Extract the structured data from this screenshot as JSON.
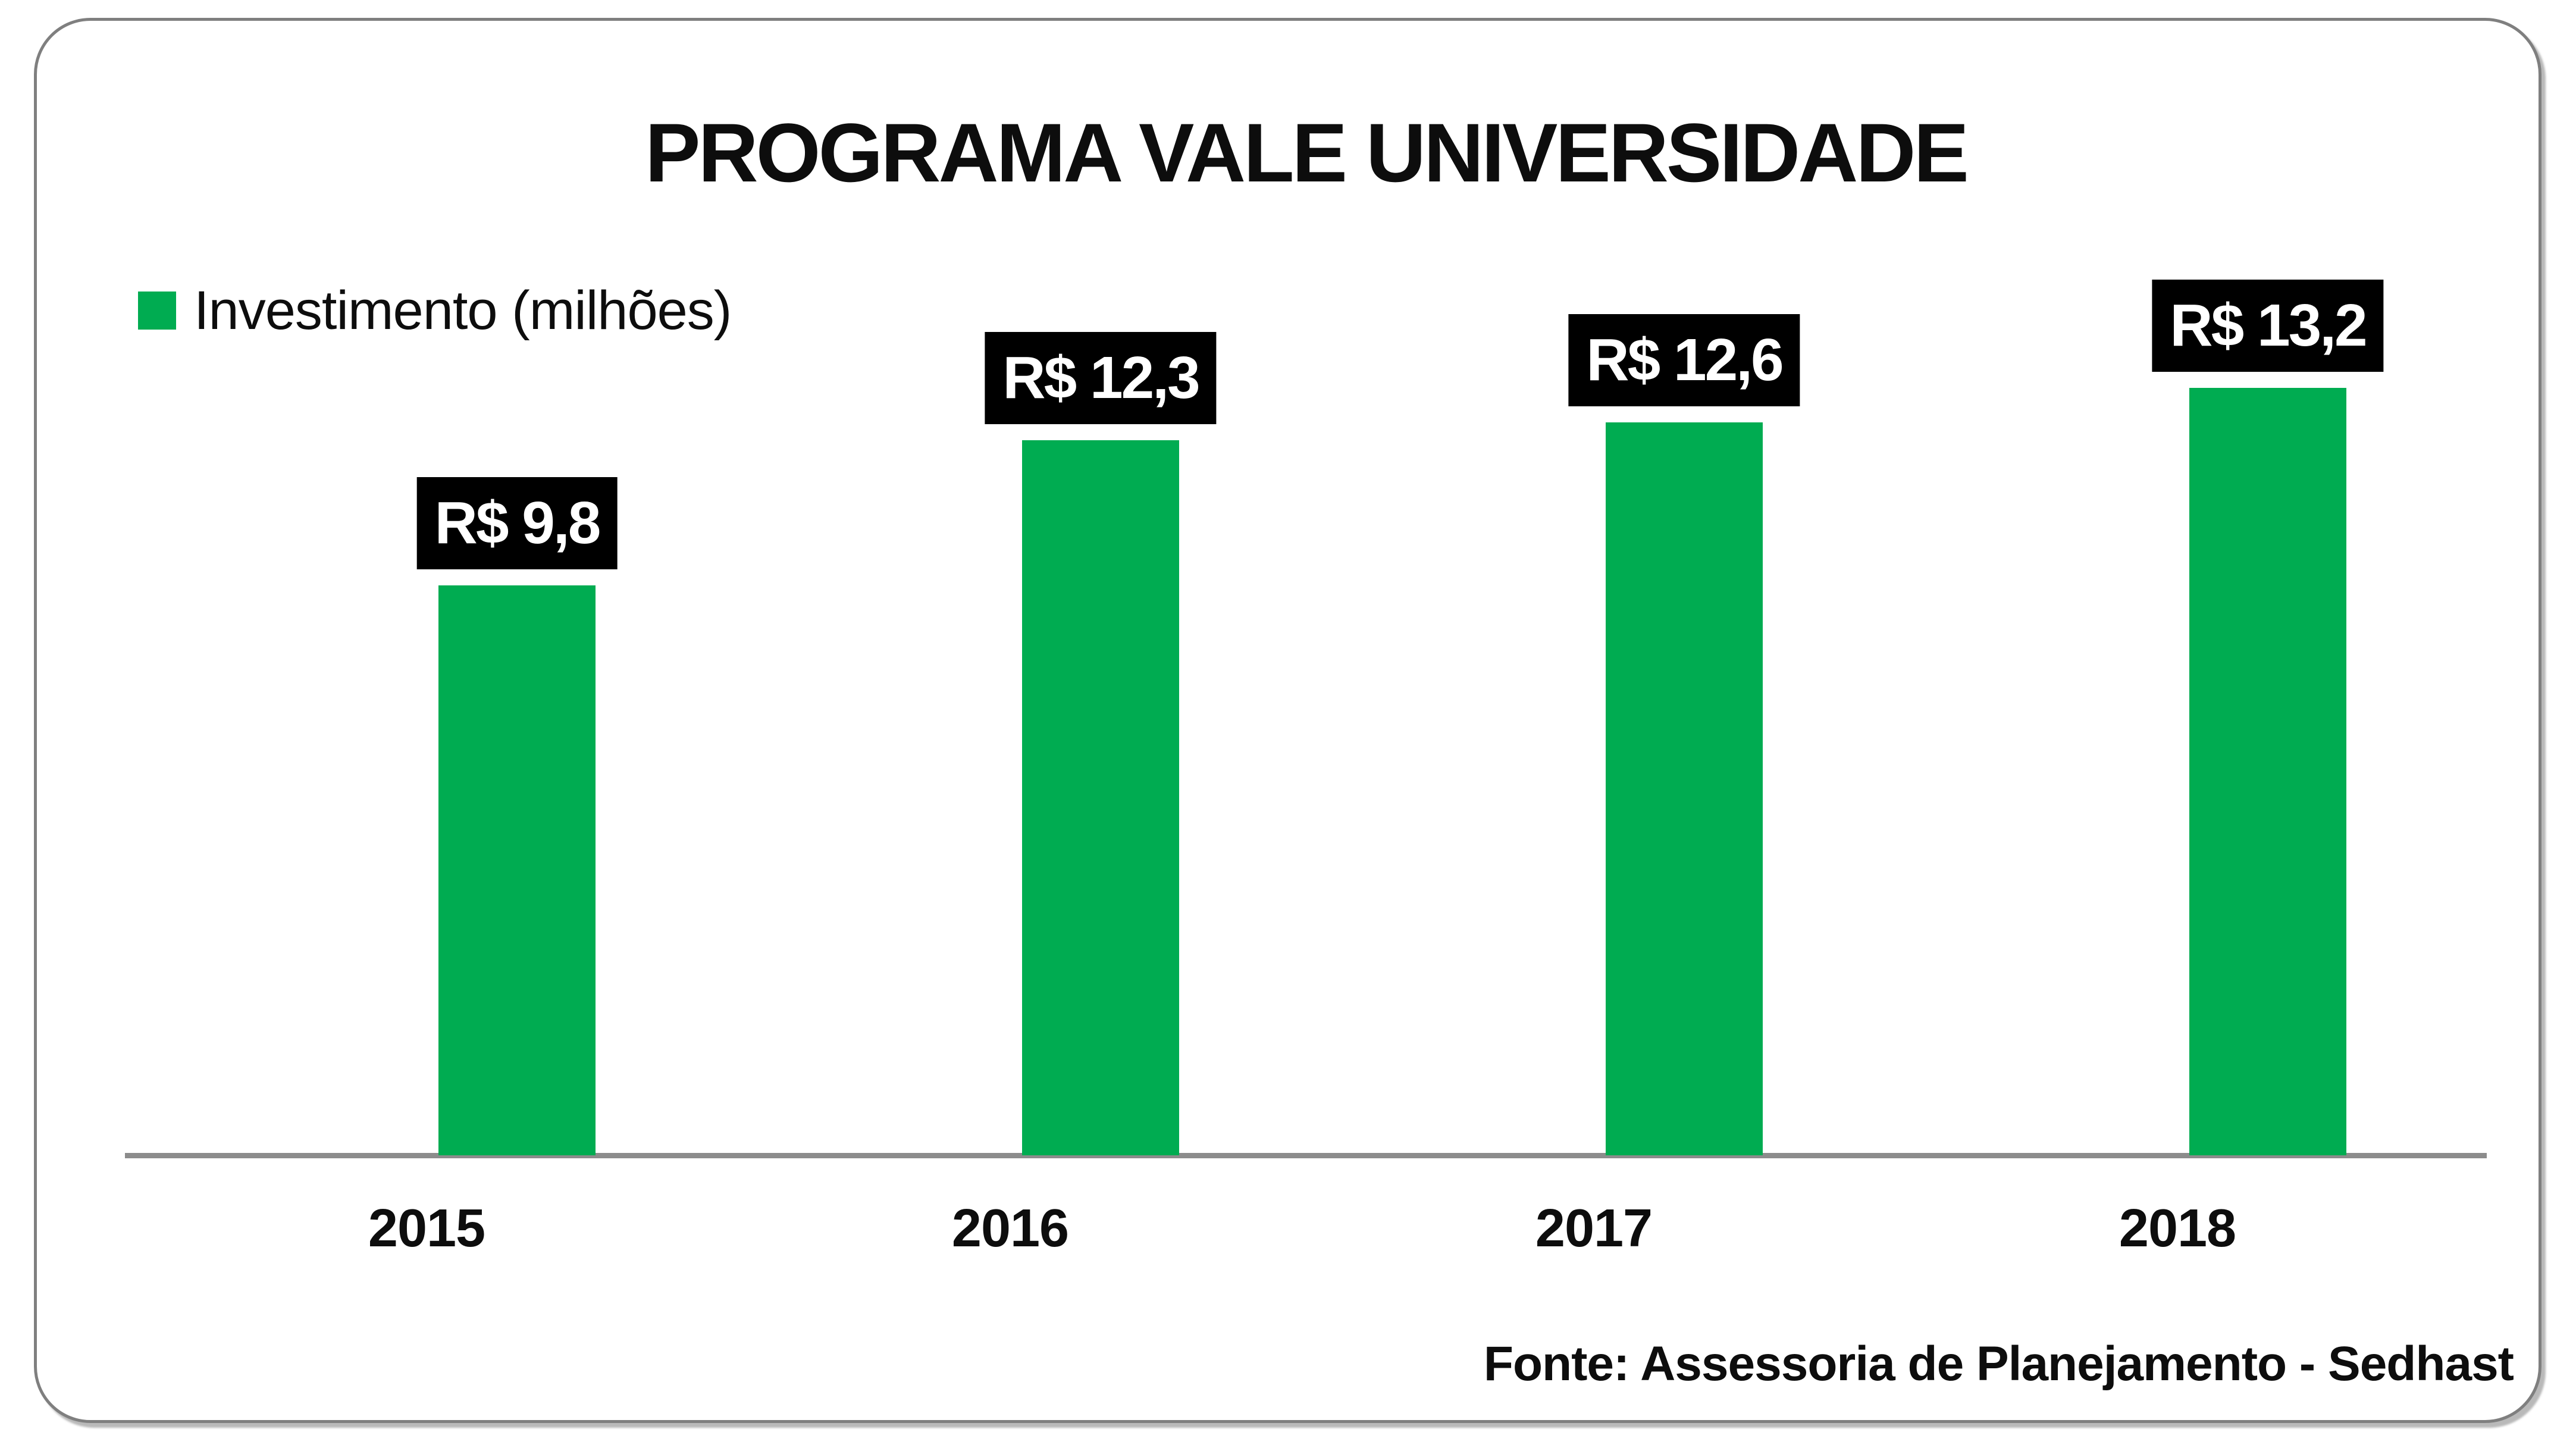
{
  "title": "PROGRAMA VALE UNIVERSIDADE",
  "legend": {
    "label": "Investimento (milhões)",
    "swatch": "green-square"
  },
  "source": "Fonte: Assessoria de Planejamento - Sedhast",
  "colors": {
    "bar_green": "#00ac51",
    "value_label_bg": "#000000",
    "value_label_text": "#ffffff",
    "axis_line": "#8c8c8c",
    "frame_border": "#7f7f7f",
    "text": "#0d0d0d",
    "background": "#ffffff"
  },
  "chart_data": {
    "type": "bar",
    "title": "PROGRAMA VALE UNIVERSIDADE",
    "series_name": "Investimento (milhões)",
    "categories": [
      "2015",
      "2016",
      "2017",
      "2018"
    ],
    "values": [
      9.8,
      12.3,
      12.6,
      13.2
    ],
    "value_labels": [
      "R$ 9,8",
      "R$ 12,3",
      "R$ 12,6",
      "R$ 13,2"
    ],
    "xlabel": "",
    "ylabel": "",
    "ylim": [
      0,
      19.5
    ],
    "grid": false,
    "y_axis_visible": false,
    "legend_position": "top-left",
    "source": "Fonte: Assessoria de Planejamento - Sedhast"
  }
}
